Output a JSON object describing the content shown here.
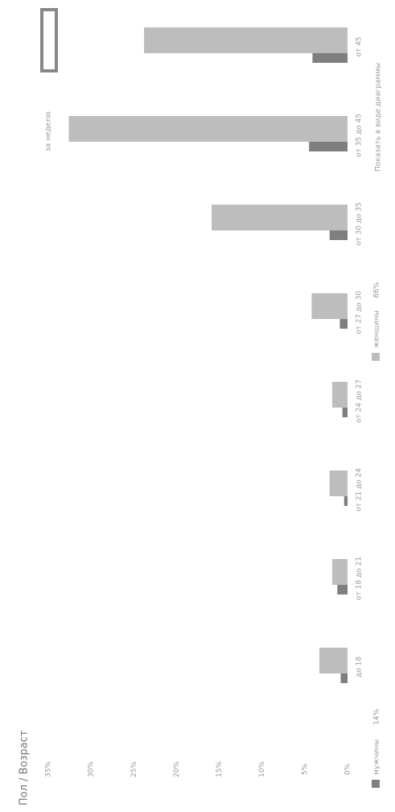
{
  "chart_data": {
    "type": "bar",
    "title": "Пол / Возраст",
    "categories": [
      "до 18",
      "от 18 до 21",
      "от 21 до 24",
      "от 24 до 27",
      "от 27 до 30",
      "от 30 до 35",
      "от 35 до 45",
      "от 45"
    ],
    "series": [
      {
        "name": "мужчины",
        "color": "#7f7f7f",
        "share": 14,
        "share_label": "14%",
        "values": [
          0.8,
          1.2,
          0.4,
          0.6,
          0.9,
          2.1,
          4.5,
          4.1
        ]
      },
      {
        "name": "женщины",
        "color": "#bdbdbd",
        "share": 86,
        "share_label": "86%",
        "values": [
          3.3,
          1.8,
          2.1,
          1.8,
          4.2,
          15.9,
          32.6,
          23.8
        ]
      }
    ],
    "ylim": [
      0,
      35
    ],
    "yticks": [
      {
        "value": 0,
        "label": "0%"
      },
      {
        "value": 5,
        "label": "5%"
      },
      {
        "value": 10,
        "label": "10%"
      },
      {
        "value": 15,
        "label": "15%"
      },
      {
        "value": 20,
        "label": "20%"
      },
      {
        "value": 25,
        "label": "25%"
      },
      {
        "value": 30,
        "label": "30%"
      },
      {
        "value": 35,
        "label": "35%"
      }
    ],
    "rotation": -90
  },
  "controls": {
    "toggle": "Показать в виде диаграммы",
    "period": "за неделю"
  }
}
